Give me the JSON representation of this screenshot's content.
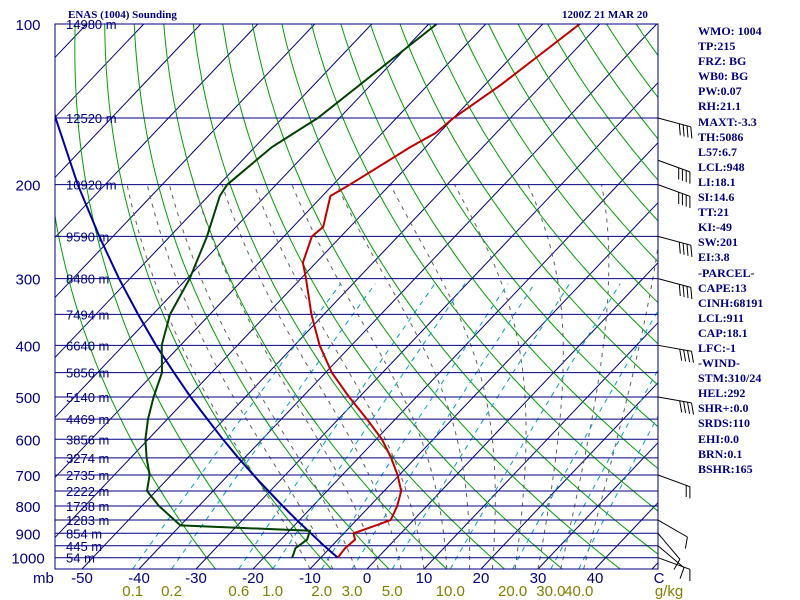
{
  "header": {
    "title": "ENAS (1004) Sounding",
    "datetime": "1200Z 21 MAR 20"
  },
  "indices": [
    "WMO: 1004",
    "TP:215",
    "FRZ: BG",
    "WB0: BG",
    "PW:0.07",
    "RH:21.1",
    "MAXT:-3.3",
    "TH:5086",
    "L57:6.7",
    "LCL:948",
    "LI:18.1",
    "SI:14.6",
    "TT:21",
    "KI:-49",
    "SW:201",
    "EI:3.8",
    "-PARCEL-",
    "CAPE:13",
    "CINH:68191",
    "LCL:911",
    "CAP:18.1",
    "LFC:-1",
    "-WIND-",
    "STM:310/24",
    "HEL:292",
    "SHR+:0.0",
    "SRDS:110",
    "EHI:0.0",
    "BRN:0.1",
    "BSHR:165"
  ],
  "colors": {
    "frame": "#000080",
    "isobar": "#000080",
    "isotherm": "#000080",
    "dry_adiabat": "#00a000",
    "moist_adiabat": "#606060",
    "mixing_ratio": "#00a0d0",
    "temperature": "#c00000",
    "dewpoint": "#004000",
    "parcel": "#0000a0",
    "temp_labels": "#000080",
    "mixing_labels": "#808000",
    "barbs": "#000000"
  },
  "chart_data": {
    "type": "line",
    "subtype": "skew-T log-P sounding",
    "yaxis": {
      "unit_label": "mb",
      "scale": "log",
      "range": [
        1050,
        100
      ],
      "ticks": [
        100,
        200,
        300,
        400,
        500,
        600,
        700,
        800,
        900,
        1000
      ],
      "isobars": [
        100,
        150,
        200,
        250,
        300,
        350,
        400,
        450,
        500,
        550,
        600,
        650,
        700,
        750,
        800,
        850,
        900,
        950,
        1000
      ]
    },
    "xaxis": {
      "unit": "C",
      "ticks": [
        -50,
        -40,
        -30,
        -20,
        -10,
        0,
        10,
        20,
        30,
        40
      ],
      "tick_labels": [
        "-50",
        "-40",
        "-30",
        "-20",
        "-10",
        "0",
        "10",
        "20",
        "30",
        "40",
        "C"
      ]
    },
    "mixing_ratio": {
      "unit_label": "g/kg",
      "values": [
        0.1,
        0.2,
        0.6,
        1.0,
        2.0,
        3.0,
        5.0,
        10.0,
        20.0,
        30.0,
        40.0
      ],
      "labels": [
        "0.1",
        "0.2",
        "0.6",
        "1.0",
        "2.0",
        "3.0",
        "5.0",
        "10.0",
        "20.0",
        "30.0",
        "40.0"
      ]
    },
    "heights": [
      {
        "p": 100,
        "label": "14980 m"
      },
      {
        "p": 150,
        "label": "12520 m"
      },
      {
        "p": 200,
        "label": "10920 m"
      },
      {
        "p": 250,
        "label": "9590 m"
      },
      {
        "p": 300,
        "label": "8480 m"
      },
      {
        "p": 350,
        "label": "7494 m"
      },
      {
        "p": 400,
        "label": "6640 m"
      },
      {
        "p": 450,
        "label": "5856 m"
      },
      {
        "p": 500,
        "label": "5140 m"
      },
      {
        "p": 550,
        "label": "4469 m"
      },
      {
        "p": 600,
        "label": "3856 m"
      },
      {
        "p": 650,
        "label": "3274 m"
      },
      {
        "p": 700,
        "label": "2735 m"
      },
      {
        "p": 750,
        "label": "2222 m"
      },
      {
        "p": 800,
        "label": "1738 m"
      },
      {
        "p": 850,
        "label": "1283 m"
      },
      {
        "p": 900,
        "label": "854 m"
      },
      {
        "p": 950,
        "label": "445 m"
      },
      {
        "p": 1000,
        "label": "54 m"
      }
    ],
    "series": [
      {
        "key": "temperature",
        "points": [
          {
            "p": 1000,
            "t": -7.0
          },
          {
            "p": 960,
            "t": -7.3
          },
          {
            "p": 925,
            "t": -7.0
          },
          {
            "p": 900,
            "t": -8.3
          },
          {
            "p": 870,
            "t": -5.7
          },
          {
            "p": 850,
            "t": -4.0
          },
          {
            "p": 800,
            "t": -5.2
          },
          {
            "p": 750,
            "t": -7.0
          },
          {
            "p": 700,
            "t": -10.3
          },
          {
            "p": 650,
            "t": -14.3
          },
          {
            "p": 600,
            "t": -19.0
          },
          {
            "p": 550,
            "t": -25.0
          },
          {
            "p": 500,
            "t": -31.8
          },
          {
            "p": 450,
            "t": -38.9
          },
          {
            "p": 400,
            "t": -45.6
          },
          {
            "p": 350,
            "t": -52.2
          },
          {
            "p": 300,
            "t": -59.1
          },
          {
            "p": 280,
            "t": -62.3
          },
          {
            "p": 250,
            "t": -65.1
          },
          {
            "p": 240,
            "t": -64.7
          },
          {
            "p": 210,
            "t": -68.6
          },
          {
            "p": 200,
            "t": -67.1
          },
          {
            "p": 170,
            "t": -62.7
          },
          {
            "p": 160,
            "t": -60.6
          },
          {
            "p": 150,
            "t": -60.0
          },
          {
            "p": 130,
            "t": -57.2
          },
          {
            "p": 100,
            "t": -53.5
          }
        ]
      },
      {
        "key": "dewpoint",
        "points": [
          {
            "p": 1000,
            "t": -15.0
          },
          {
            "p": 960,
            "t": -16.0
          },
          {
            "p": 925,
            "t": -15.4
          },
          {
            "p": 890,
            "t": -16.4
          },
          {
            "p": 870,
            "t": -40.0
          },
          {
            "p": 800,
            "t": -47.0
          },
          {
            "p": 750,
            "t": -51.6
          },
          {
            "p": 700,
            "t": -53.8
          },
          {
            "p": 650,
            "t": -57.2
          },
          {
            "p": 600,
            "t": -60.5
          },
          {
            "p": 550,
            "t": -63.4
          },
          {
            "p": 500,
            "t": -66.1
          },
          {
            "p": 450,
            "t": -68.7
          },
          {
            "p": 400,
            "t": -73.3
          },
          {
            "p": 350,
            "t": -77.0
          },
          {
            "p": 300,
            "t": -79.5
          },
          {
            "p": 250,
            "t": -83.5
          },
          {
            "p": 210,
            "t": -88.0
          },
          {
            "p": 200,
            "t": -88.6
          },
          {
            "p": 170,
            "t": -87.0
          },
          {
            "p": 150,
            "t": -83.8
          },
          {
            "p": 100,
            "t": -78.6
          }
        ]
      },
      {
        "key": "parcel",
        "points": [
          {
            "p": 1000,
            "t": -7.0
          },
          {
            "p": 950,
            "t": -11.4
          },
          {
            "p": 900,
            "t": -15.8
          },
          {
            "p": 850,
            "t": -20.5
          },
          {
            "p": 800,
            "t": -25.3
          },
          {
            "p": 750,
            "t": -30.3
          },
          {
            "p": 700,
            "t": -35.6
          },
          {
            "p": 650,
            "t": -41.1
          },
          {
            "p": 600,
            "t": -46.9
          },
          {
            "p": 550,
            "t": -53.0
          },
          {
            "p": 500,
            "t": -59.6
          },
          {
            "p": 450,
            "t": -66.6
          },
          {
            "p": 400,
            "t": -74.3
          },
          {
            "p": 350,
            "t": -82.6
          },
          {
            "p": 300,
            "t": -91.9
          },
          {
            "p": 250,
            "t": -102.4
          },
          {
            "p": 200,
            "t": -114.8
          },
          {
            "p": 150,
            "t": -129.8
          },
          {
            "p": 100,
            "t": -150.0
          }
        ]
      }
    ],
    "winds": [
      {
        "p": 1000,
        "dir": 290,
        "kt": 10
      },
      {
        "p": 950,
        "dir": 310,
        "kt": 10
      },
      {
        "p": 900,
        "dir": 320,
        "kt": 10
      },
      {
        "p": 850,
        "dir": 300,
        "kt": 10
      },
      {
        "p": 700,
        "dir": 290,
        "kt": 20
      },
      {
        "p": 500,
        "dir": 280,
        "kt": 40
      },
      {
        "p": 400,
        "dir": 280,
        "kt": 40
      },
      {
        "p": 300,
        "dir": 285,
        "kt": 40
      },
      {
        "p": 250,
        "dir": 285,
        "kt": 40
      },
      {
        "p": 200,
        "dir": 290,
        "kt": 40
      },
      {
        "p": 180,
        "dir": 290,
        "kt": 40
      },
      {
        "p": 150,
        "dir": 285,
        "kt": 40
      }
    ]
  }
}
